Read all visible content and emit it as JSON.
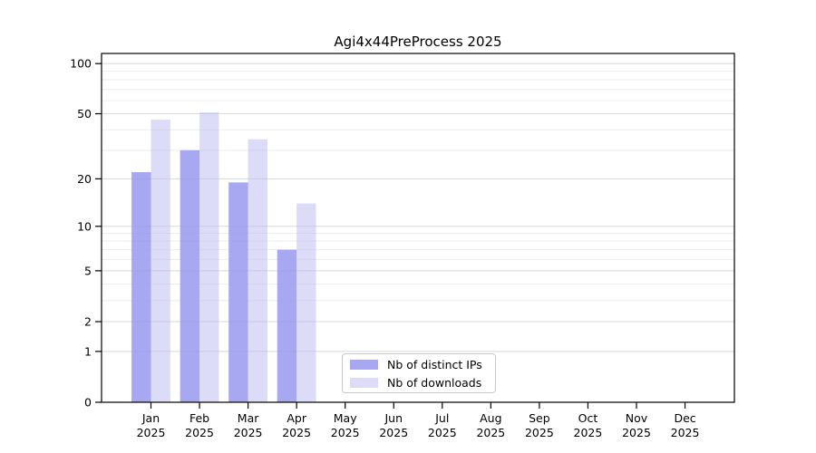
{
  "chart_data": {
    "type": "bar",
    "title": "Agi4x44PreProcess 2025",
    "categories": [
      "Jan 2025",
      "Feb 2025",
      "Mar 2025",
      "Apr 2025",
      "May 2025",
      "Jun 2025",
      "Jul 2025",
      "Aug 2025",
      "Sep 2025",
      "Oct 2025",
      "Nov 2025",
      "Dec 2025"
    ],
    "series": [
      {
        "name": "Nb of distinct IPs",
        "color": "#a8a8f2",
        "bar_fill": "rgba(153,153,240,0.85)",
        "values": [
          22,
          30,
          19,
          7,
          0,
          0,
          0,
          0,
          0,
          0,
          0,
          0
        ]
      },
      {
        "name": "Nb of downloads",
        "color": "#dcdcf8",
        "bar_fill": "rgba(185,185,241,0.5)",
        "values": [
          46,
          51,
          35,
          14,
          0,
          0,
          0,
          0,
          0,
          0,
          0,
          0
        ]
      }
    ],
    "yscale": "log1p",
    "ylim": [
      0,
      100
    ],
    "yticks": [
      0,
      1,
      2,
      5,
      10,
      20,
      50,
      100
    ],
    "minor_yticks": [
      3,
      4,
      6,
      7,
      8,
      9,
      30,
      40,
      60,
      70,
      80,
      90
    ],
    "grid": true,
    "legend_position": "lower center inside plot",
    "xlabel": "",
    "ylabel": ""
  },
  "style_colors": {
    "major_grid": "#d8d8d8",
    "minor_grid": "#ececec",
    "axis": "#000000",
    "background": "#ffffff"
  }
}
